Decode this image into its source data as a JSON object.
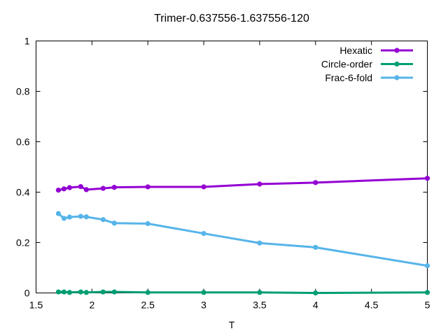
{
  "chart_data": {
    "type": "line",
    "title": "Trimer-0.637556-1.637556-120",
    "xlabel": "T",
    "ylabel": "",
    "xlim": [
      1.5,
      5
    ],
    "ylim": [
      0,
      1
    ],
    "xticks": [
      1.5,
      2,
      2.5,
      3,
      3.5,
      4,
      4.5,
      5
    ],
    "xtick_labels": [
      "1.5",
      "2",
      "2.5",
      "3",
      "3.5",
      "4",
      "4.5",
      "5"
    ],
    "yticks": [
      0,
      0.2,
      0.4,
      0.6,
      0.8,
      1
    ],
    "ytick_labels": [
      "0",
      "0.2",
      "0.4",
      "0.6",
      "0.8",
      "1"
    ],
    "grid": false,
    "legend_position": "top-right",
    "series": [
      {
        "name": "Hexatic",
        "color": "#9400d3",
        "x": [
          1.7,
          1.75,
          1.8,
          1.9,
          1.95,
          2.1,
          2.2,
          2.5,
          3,
          3.5,
          4,
          5
        ],
        "y": [
          0.408,
          0.413,
          0.418,
          0.422,
          0.41,
          0.415,
          0.419,
          0.421,
          0.421,
          0.432,
          0.438,
          0.455
        ]
      },
      {
        "name": "Circle-order",
        "color": "#009e73",
        "x": [
          1.7,
          1.75,
          1.8,
          1.9,
          1.95,
          2.1,
          2.2,
          2.5,
          3,
          3.5,
          4,
          5
        ],
        "y": [
          0.004,
          0.004,
          0.002,
          0.004,
          0.002,
          0.004,
          0.004,
          0.002,
          0.002,
          0.002,
          0.0,
          0.002
        ]
      },
      {
        "name": "Frac-6-fold",
        "color": "#56b4e9",
        "x": [
          1.7,
          1.75,
          1.8,
          1.9,
          1.95,
          2.1,
          2.2,
          2.5,
          3,
          3.5,
          4,
          5
        ],
        "y": [
          0.315,
          0.296,
          0.301,
          0.304,
          0.302,
          0.291,
          0.277,
          0.275,
          0.236,
          0.198,
          0.181,
          0.108
        ]
      }
    ]
  }
}
